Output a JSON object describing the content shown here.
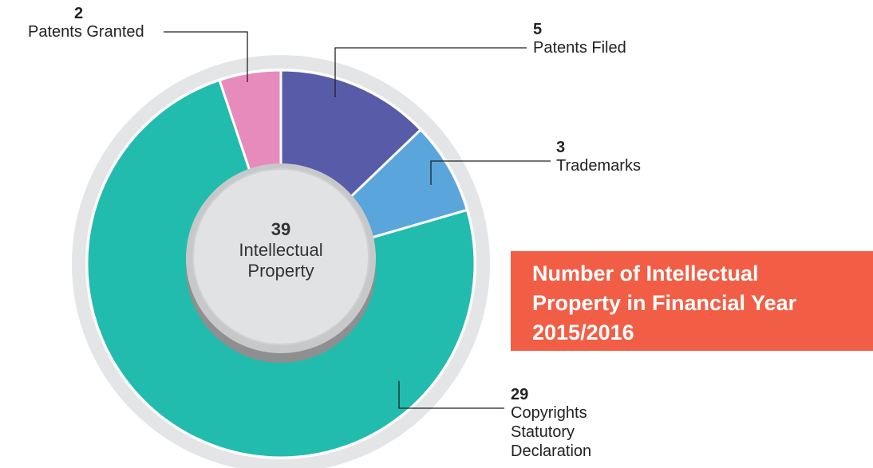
{
  "chart_data": {
    "type": "pie",
    "title": "Number of Intellectual Property in Financial Year 2015/2016",
    "categories": [
      "Patents Filed",
      "Trademarks",
      "Copyrights Statutory Declaration",
      "Patents Granted"
    ],
    "values": [
      5,
      3,
      29,
      2
    ],
    "colors": [
      "#585ca8",
      "#5aa6dc",
      "#21bcad",
      "#e78bbd"
    ],
    "center_value": 39,
    "center_label": "Intellectual Property"
  }
}
